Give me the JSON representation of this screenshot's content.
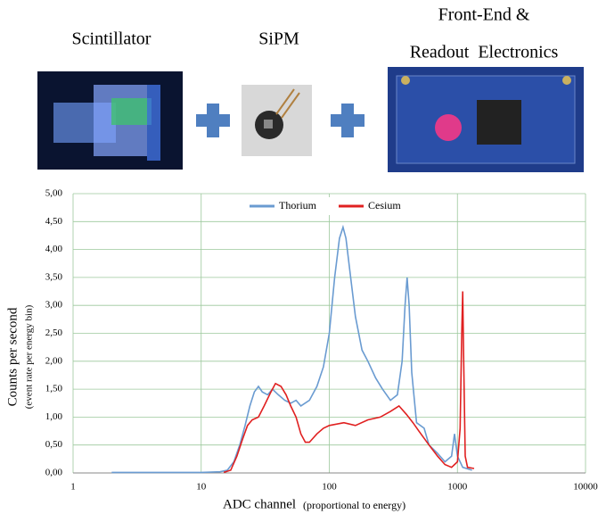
{
  "panels": [
    {
      "label": "Scintillator"
    },
    {
      "label": "SiPM"
    },
    {
      "label_lines": [
        "Front-End &",
        "Readout  Electronics"
      ]
    }
  ],
  "chart_data": {
    "type": "line",
    "xlabel": "ADC channel",
    "xlabel_note": "(proportional to energy)",
    "ylabel": "Counts per second",
    "ylabel_note": "(event rate per energy bin)",
    "xscale": "log",
    "grid": true,
    "legend": "top",
    "xlim": [
      1,
      10000
    ],
    "xticks": [
      1,
      10,
      100,
      1000,
      10000
    ],
    "ylim": [
      0,
      5
    ],
    "yticks": [
      {
        "value": 0,
        "label": "0,00"
      },
      {
        "value": 0.5,
        "label": "0,50"
      },
      {
        "value": 1,
        "label": "1,00"
      },
      {
        "value": 1.5,
        "label": "1,50"
      },
      {
        "value": 2,
        "label": "2,00"
      },
      {
        "value": 2.5,
        "label": "2,50"
      },
      {
        "value": 3,
        "label": "3,00"
      },
      {
        "value": 3.5,
        "label": "3,50"
      },
      {
        "value": 4,
        "label": "4,00"
      },
      {
        "value": 4.5,
        "label": "4,50"
      },
      {
        "value": 5,
        "label": "5,00"
      }
    ],
    "series": [
      {
        "name": "Thorium",
        "color": "#6a9bd1",
        "x": [
          2,
          10,
          14,
          16,
          18,
          20,
          22,
          24,
          26,
          28,
          30,
          33,
          36,
          40,
          45,
          50,
          55,
          60,
          70,
          80,
          90,
          100,
          110,
          120,
          128,
          135,
          145,
          160,
          180,
          200,
          230,
          260,
          300,
          340,
          370,
          390,
          405,
          420,
          440,
          480,
          550,
          600,
          700,
          800,
          900,
          950,
          1000,
          1100,
          1300
        ],
        "values": [
          0.01,
          0.01,
          0.02,
          0.05,
          0.2,
          0.5,
          0.85,
          1.2,
          1.45,
          1.55,
          1.45,
          1.4,
          1.5,
          1.4,
          1.3,
          1.25,
          1.3,
          1.2,
          1.3,
          1.55,
          1.9,
          2.5,
          3.5,
          4.2,
          4.4,
          4.2,
          3.6,
          2.8,
          2.2,
          2.0,
          1.7,
          1.5,
          1.3,
          1.4,
          2.0,
          3.0,
          3.5,
          3.0,
          1.8,
          0.9,
          0.8,
          0.5,
          0.35,
          0.2,
          0.3,
          0.7,
          0.3,
          0.1,
          0.05
        ]
      },
      {
        "name": "Cesium",
        "color": "#e02020",
        "x": [
          15,
          17,
          19,
          21,
          23,
          25,
          28,
          31,
          35,
          38,
          42,
          46,
          50,
          55,
          60,
          65,
          70,
          80,
          90,
          100,
          130,
          160,
          200,
          250,
          300,
          350,
          400,
          450,
          500,
          600,
          700,
          800,
          900,
          1000,
          1050,
          1080,
          1100,
          1120,
          1150,
          1200,
          1350
        ],
        "values": [
          0.01,
          0.05,
          0.3,
          0.6,
          0.85,
          0.95,
          1.0,
          1.2,
          1.45,
          1.6,
          1.55,
          1.4,
          1.2,
          1.0,
          0.7,
          0.55,
          0.55,
          0.7,
          0.8,
          0.85,
          0.9,
          0.85,
          0.95,
          1.0,
          1.1,
          1.2,
          1.05,
          0.9,
          0.75,
          0.5,
          0.3,
          0.15,
          0.1,
          0.2,
          0.8,
          2.5,
          3.25,
          2.0,
          0.3,
          0.1,
          0.08
        ]
      }
    ]
  }
}
